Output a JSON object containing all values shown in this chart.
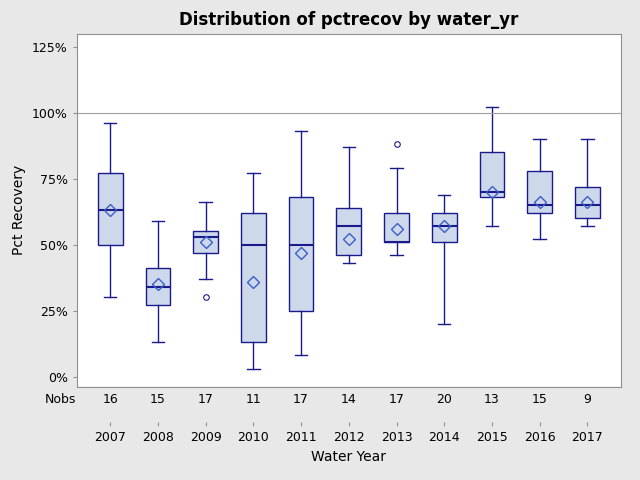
{
  "title": "Distribution of pctrecov by water_yr",
  "xlabel": "Water Year",
  "ylabel": "Pct Recovery",
  "years": [
    2007,
    2008,
    2009,
    2010,
    2011,
    2012,
    2013,
    2014,
    2015,
    2016,
    2017
  ],
  "nobs": [
    16,
    15,
    17,
    11,
    17,
    14,
    17,
    20,
    13,
    15,
    9
  ],
  "box_data": {
    "2007": {
      "min": 0.3,
      "q1": 0.5,
      "median": 0.63,
      "q3": 0.77,
      "max": 0.96,
      "mean": 0.63,
      "outliers": []
    },
    "2008": {
      "min": 0.13,
      "q1": 0.27,
      "median": 0.34,
      "q3": 0.41,
      "max": 0.59,
      "mean": 0.35,
      "outliers": []
    },
    "2009": {
      "min": 0.37,
      "q1": 0.47,
      "median": 0.53,
      "q3": 0.55,
      "max": 0.66,
      "mean": 0.51,
      "outliers": [
        0.3
      ]
    },
    "2010": {
      "min": 0.03,
      "q1": 0.13,
      "median": 0.5,
      "q3": 0.62,
      "max": 0.77,
      "mean": 0.36,
      "outliers": []
    },
    "2011": {
      "min": 0.08,
      "q1": 0.25,
      "median": 0.5,
      "q3": 0.68,
      "max": 0.93,
      "mean": 0.47,
      "outliers": []
    },
    "2012": {
      "min": 0.43,
      "q1": 0.46,
      "median": 0.57,
      "q3": 0.64,
      "max": 0.87,
      "mean": 0.52,
      "outliers": []
    },
    "2013": {
      "min": 0.46,
      "q1": 0.51,
      "median": 0.51,
      "q3": 0.62,
      "max": 0.79,
      "mean": 0.56,
      "outliers": [
        0.88
      ]
    },
    "2014": {
      "min": 0.2,
      "q1": 0.51,
      "median": 0.57,
      "q3": 0.62,
      "max": 0.69,
      "mean": 0.57,
      "outliers": []
    },
    "2015": {
      "min": 0.57,
      "q1": 0.68,
      "median": 0.7,
      "q3": 0.85,
      "max": 1.02,
      "mean": 0.7,
      "outliers": []
    },
    "2016": {
      "min": 0.52,
      "q1": 0.62,
      "median": 0.65,
      "q3": 0.78,
      "max": 0.9,
      "mean": 0.66,
      "outliers": []
    },
    "2017": {
      "min": 0.57,
      "q1": 0.6,
      "median": 0.65,
      "q3": 0.72,
      "max": 0.9,
      "mean": 0.66,
      "outliers": []
    }
  },
  "box_facecolor": "#cdd8ea",
  "box_edgecolor": "#1a1a8c",
  "whisker_color": "#1a1a8c",
  "median_color": "#1a1a8c",
  "mean_color": "#3a5fc8",
  "outlier_color": "#1a1a8c",
  "reference_line_y": 1.0,
  "reference_line_color": "#a0a0a0",
  "ylim": [
    -0.04,
    1.3
  ],
  "yticks": [
    0.0,
    0.25,
    0.5,
    0.75,
    1.0,
    1.25
  ],
  "yticklabels": [
    "0%",
    "25%",
    "50%",
    "75%",
    "100%",
    "125%"
  ],
  "background_color": "#e8e8e8",
  "plot_bg_color": "#ffffff",
  "title_fontsize": 12,
  "label_fontsize": 10,
  "tick_fontsize": 9,
  "nobs_fontsize": 9,
  "box_width": 0.52
}
